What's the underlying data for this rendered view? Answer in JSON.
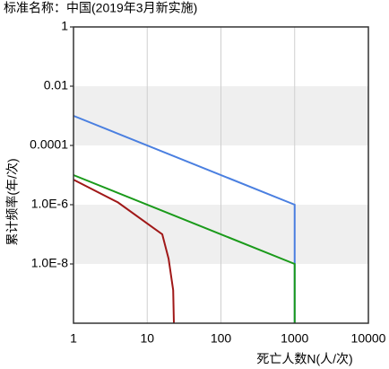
{
  "chart_data": {
    "type": "line",
    "title": "标准名称：中国(2019年3月新实施)",
    "x_label": "死亡人数N(人/次)",
    "y_label": "累计频率(年/次)",
    "log_x": true,
    "log_y": true,
    "banded": true,
    "grid": true,
    "xlim": [
      1,
      10000
    ],
    "xticks": [
      1,
      10,
      100,
      1000,
      10000
    ],
    "ylim": [
      1e-10,
      1
    ],
    "yticks": [
      1,
      0.01,
      0.0001,
      {
        "value": 1e-06,
        "label": "1.0E-6"
      },
      {
        "value": 1e-08,
        "label": "1.0E-8"
      }
    ],
    "series": [
      {
        "color": "#4a7fe0",
        "x": [
          1,
          1000,
          1000
        ],
        "values": [
          0.001,
          1e-06,
          1e-10
        ]
      },
      {
        "color": "#1a9a1a",
        "x": [
          1,
          1000,
          1000
        ],
        "values": [
          1e-05,
          1e-08,
          1e-10
        ]
      },
      {
        "color": "#a01818",
        "x": [
          1,
          4,
          16,
          19.5,
          22.5,
          23
        ],
        "values": [
          7e-06,
          1.2e-06,
          1e-07,
          1.5e-08,
          1.3e-09,
          1e-10
        ]
      }
    ]
  }
}
